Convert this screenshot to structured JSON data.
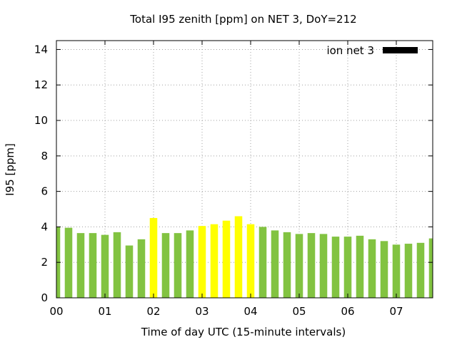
{
  "chart_data": {
    "type": "bar",
    "title": "Total I95 zenith [ppm] on NET 3, DoY=212",
    "xlabel": "Time of day UTC (15-minute intervals)",
    "ylabel": "I95 [ppm]",
    "ylim": [
      0,
      14.5
    ],
    "yticks": [
      0,
      2,
      4,
      6,
      8,
      10,
      12,
      14
    ],
    "xlim": [
      0,
      7.75
    ],
    "xticks": [
      0,
      1,
      2,
      3,
      4,
      5,
      6,
      7
    ],
    "xtick_labels": [
      "00",
      "01",
      "02",
      "03",
      "04",
      "05",
      "06",
      "07"
    ],
    "grid": true,
    "legend": {
      "position": "top-right",
      "entries": [
        "ion net 3"
      ],
      "swatch_color": "#000000"
    },
    "colors": {
      "normal": "#82c341",
      "highlight": "#ffff00"
    },
    "series": [
      {
        "name": "ion net 3",
        "x": [
          0,
          0.25,
          0.5,
          0.75,
          1,
          1.25,
          1.5,
          1.75,
          2,
          2.25,
          2.5,
          2.75,
          3,
          3.25,
          3.5,
          3.75,
          4,
          4.25,
          4.5,
          4.75,
          5,
          5.25,
          5.5,
          5.75,
          6,
          6.25,
          6.5,
          6.75,
          7,
          7.25,
          7.5,
          7.75
        ],
        "values": [
          4.0,
          3.95,
          3.65,
          3.65,
          3.55,
          3.7,
          2.95,
          3.3,
          4.5,
          3.65,
          3.65,
          3.8,
          4.05,
          4.15,
          4.35,
          4.6,
          4.15,
          4.0,
          3.8,
          3.7,
          3.6,
          3.65,
          3.6,
          3.45,
          3.45,
          3.5,
          3.3,
          3.2,
          3.0,
          3.05,
          3.1,
          3.35
        ],
        "highlight": [
          false,
          false,
          false,
          false,
          false,
          false,
          false,
          false,
          true,
          false,
          false,
          false,
          true,
          true,
          true,
          true,
          true,
          false,
          false,
          false,
          false,
          false,
          false,
          false,
          false,
          false,
          false,
          false,
          false,
          false,
          false,
          false
        ]
      }
    ]
  }
}
